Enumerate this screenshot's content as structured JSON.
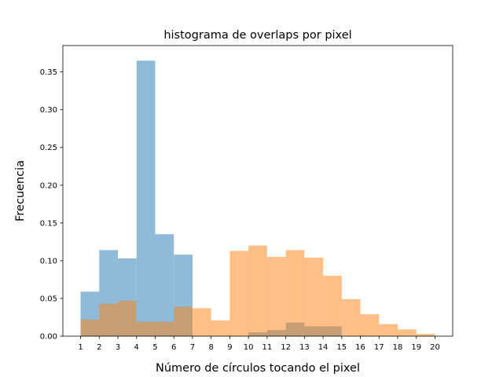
{
  "chart_data": {
    "type": "bar",
    "title": "histograma de overlaps por pixel",
    "xlabel": "Número de círculos tocando el pixel",
    "ylabel": "Frecuencia",
    "xlim": [
      0.05,
      20.95
    ],
    "ylim": [
      0,
      0.385
    ],
    "grid": false,
    "legend": "none",
    "x_ticks": [
      "1",
      "2",
      "3",
      "4",
      "5",
      "6",
      "7",
      "8",
      "9",
      "10",
      "11",
      "12",
      "13",
      "14",
      "15",
      "16",
      "17",
      "18",
      "19",
      "20"
    ],
    "y_ticks": [
      "0.00",
      "0.05",
      "0.10",
      "0.15",
      "0.20",
      "0.25",
      "0.30",
      "0.35"
    ],
    "series": [
      {
        "color": "#1f77b4",
        "opacity": 0.5,
        "bin_edges": [
          1,
          2,
          3,
          4,
          5,
          6,
          7,
          8,
          9,
          10,
          11,
          12,
          13,
          14,
          15,
          16,
          17,
          18,
          19,
          20
        ],
        "values": [
          0.059,
          0.114,
          0.103,
          0.365,
          0.135,
          0.108,
          0.0,
          0.0,
          0.0,
          0.005,
          0.008,
          0.018,
          0.013,
          0.013,
          0.0,
          0.0,
          0.0,
          0.0,
          0.0
        ]
      },
      {
        "color": "#ff7f0e",
        "opacity": 0.5,
        "bin_edges": [
          1,
          2,
          3,
          4,
          5,
          6,
          7,
          8,
          9,
          10,
          11,
          12,
          13,
          14,
          15,
          16,
          17,
          18,
          19,
          20
        ],
        "values": [
          0.022,
          0.043,
          0.047,
          0.019,
          0.019,
          0.039,
          0.037,
          0.021,
          0.113,
          0.12,
          0.105,
          0.114,
          0.104,
          0.08,
          0.049,
          0.029,
          0.016,
          0.009,
          0.003
        ]
      }
    ]
  }
}
